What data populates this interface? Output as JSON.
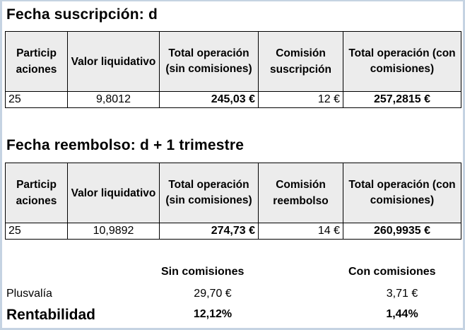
{
  "section1": {
    "title": "Fecha suscripción: d",
    "headers": [
      "Particip aciones",
      "Valor liquidativo",
      "Total operación (sin comisiones)",
      "Comisión suscripción",
      "Total operación (con comisiones)"
    ],
    "row": {
      "participaciones": "25",
      "valor_liquidativo": "9,8012",
      "total_sin": "245,03 €",
      "comision": "12 €",
      "total_con": "257,2815 €"
    }
  },
  "section2": {
    "title": "Fecha reembolso: d + 1 trimestre",
    "headers": [
      "Particip aciones",
      "Valor liquidativo",
      "Total operación (sin comisiones)",
      "Comisión reembolso",
      "Total operación (con comisiones)"
    ],
    "row": {
      "participaciones": "25",
      "valor_liquidativo": "10,9892",
      "total_sin": "274,73 €",
      "comision": "14 €",
      "total_con": "260,9935 €"
    }
  },
  "summary": {
    "col_sin": "Sin comisiones",
    "col_con": "Con comisiones",
    "plusvalia": {
      "label": "Plusvalía",
      "sin": "29,70 €",
      "con": "3,71 €"
    },
    "rentabilidad": {
      "label": "Rentabilidad",
      "sin": "12,12%",
      "con": "1,44%"
    }
  }
}
